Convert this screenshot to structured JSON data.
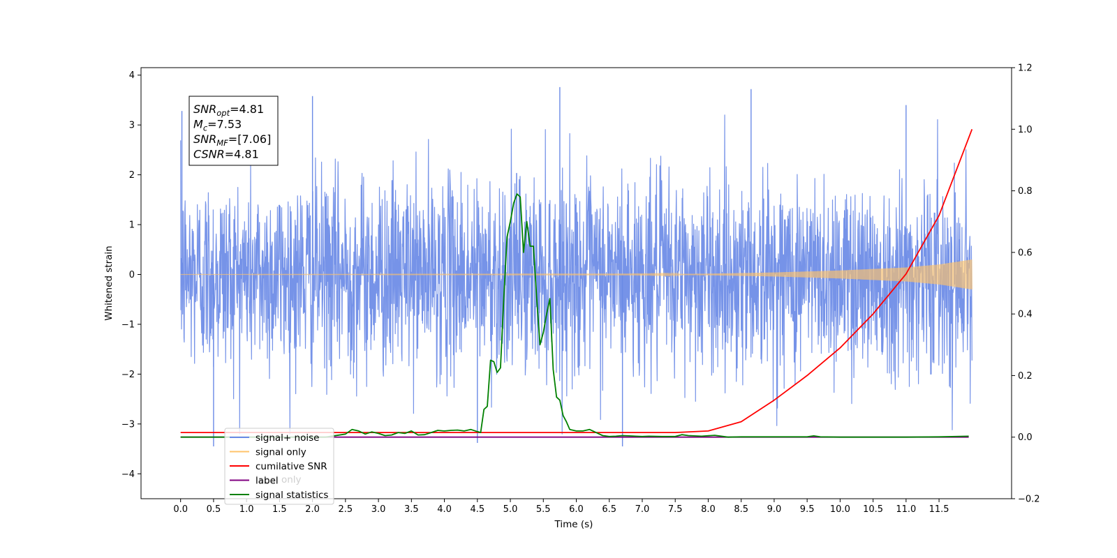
{
  "chart_data": {
    "type": "line",
    "xlabel": "Time (s)",
    "ylabel": "Whitened strain",
    "xlim": [
      -0.6,
      12.6
    ],
    "ylim": [
      -4.5,
      4.15
    ],
    "y2lim": [
      -0.2,
      1.2
    ],
    "x_ticks": [
      "0.0",
      "0.5",
      "1.0",
      "1.5",
      "2.0",
      "2.5",
      "3.0",
      "3.5",
      "4.0",
      "4.5",
      "5.0",
      "5.5",
      "6.0",
      "6.5",
      "7.0",
      "7.5",
      "8.0",
      "8.5",
      "9.0",
      "9.5",
      "10.0",
      "10.5",
      "11.0",
      "11.5"
    ],
    "y_ticks": [
      "−4",
      "−3",
      "−2",
      "−1",
      "0",
      "1",
      "2",
      "3",
      "4"
    ],
    "y2_ticks": [
      "−0.2",
      "0.0",
      "0.2",
      "0.4",
      "0.6",
      "0.8",
      "1.0",
      "1.2"
    ],
    "annotation": {
      "lines": [
        {
          "main": "SNR",
          "sub": "opt",
          "rest": "=4.81"
        },
        {
          "main": "M",
          "sub": "c",
          "rest": "=7.53"
        },
        {
          "main": "SNR",
          "sub": "MF",
          "rest": "=[7.06]"
        },
        {
          "main": "CSNR",
          "sub": "",
          "rest": "=4.81"
        }
      ]
    },
    "legend": {
      "placement": "lower-left",
      "entries": [
        {
          "label": "signal+ noise",
          "color": "#6a8ae6"
        },
        {
          "label": "signal only",
          "color": "#ffc36a"
        },
        {
          "label": "cumilative SNR",
          "color": "#ff0000"
        },
        {
          "label": "label",
          "color": "#800080"
        },
        {
          "label": "signal statistics",
          "color": "#008000"
        }
      ],
      "obscured_label": "label only"
    },
    "series": [
      {
        "name": "signal+ noise",
        "axis": "left",
        "color": "#6a8ae6",
        "t_start": 0.0,
        "t_end": 12.0,
        "noise_std": 0.97,
        "peak_values": [
          {
            "t": 0.02,
            "y": 3.28
          },
          {
            "t": 2.0,
            "y": 3.58
          },
          {
            "t": 5.75,
            "y": 3.76
          },
          {
            "t": 8.65,
            "y": 3.72
          },
          {
            "t": 11.0,
            "y": 3.4
          },
          {
            "t": 0.5,
            "y": -3.45
          },
          {
            "t": 4.5,
            "y": -3.38
          },
          {
            "t": 6.7,
            "y": -3.45
          }
        ]
      },
      {
        "name": "signal only",
        "axis": "left",
        "color": "#ffc36a",
        "t_start": 0.0,
        "t_end": 12.0,
        "envelope": {
          "t": [
            0,
            7,
            8,
            9,
            10,
            11,
            11.5,
            12
          ],
          "amp": [
            0,
            0.005,
            0.015,
            0.04,
            0.08,
            0.14,
            0.2,
            0.3
          ]
        }
      },
      {
        "name": "cumilative SNR",
        "axis": "right",
        "color": "#ff0000",
        "x": [
          0,
          7.5,
          8.0,
          8.5,
          9.0,
          9.5,
          10.0,
          10.5,
          11.0,
          11.5,
          12.0
        ],
        "y": [
          0.015,
          0.015,
          0.02,
          0.05,
          0.12,
          0.2,
          0.29,
          0.4,
          0.53,
          0.72,
          1.0
        ]
      },
      {
        "name": "label",
        "axis": "right",
        "color": "#800080",
        "x": [
          0,
          11.95
        ],
        "y": [
          0.0,
          0.0
        ]
      },
      {
        "name": "signal statistics",
        "axis": "right",
        "color": "#008000",
        "x": [
          0.0,
          2.2,
          2.5,
          2.6,
          2.7,
          2.8,
          2.9,
          3.0,
          3.1,
          3.2,
          3.3,
          3.4,
          3.5,
          3.6,
          3.7,
          3.8,
          3.9,
          4.0,
          4.1,
          4.2,
          4.3,
          4.4,
          4.5,
          4.55,
          4.6,
          4.65,
          4.7,
          4.75,
          4.8,
          4.85,
          4.9,
          4.95,
          5.0,
          5.05,
          5.1,
          5.15,
          5.2,
          5.25,
          5.3,
          5.35,
          5.4,
          5.45,
          5.5,
          5.55,
          5.6,
          5.65,
          5.7,
          5.75,
          5.8,
          5.85,
          5.9,
          6.0,
          6.1,
          6.2,
          6.3,
          6.4,
          6.5,
          6.6,
          6.7,
          6.8,
          6.9,
          7.0,
          7.1,
          7.3,
          7.5,
          7.6,
          7.7,
          7.9,
          8.1,
          8.3,
          8.5,
          9.0,
          9.5,
          9.6,
          9.7,
          10.0,
          10.5,
          11.0,
          11.5,
          11.95
        ],
        "y": [
          0.0,
          0.0,
          0.01,
          0.025,
          0.02,
          0.01,
          0.017,
          0.012,
          0.005,
          0.007,
          0.015,
          0.012,
          0.02,
          0.007,
          0.008,
          0.015,
          0.022,
          0.02,
          0.022,
          0.023,
          0.02,
          0.025,
          0.018,
          0.015,
          0.09,
          0.1,
          0.25,
          0.245,
          0.21,
          0.225,
          0.45,
          0.65,
          0.7,
          0.76,
          0.79,
          0.78,
          0.6,
          0.7,
          0.62,
          0.62,
          0.45,
          0.3,
          0.34,
          0.4,
          0.45,
          0.22,
          0.13,
          0.12,
          0.07,
          0.05,
          0.025,
          0.02,
          0.02,
          0.025,
          0.015,
          0.005,
          0.002,
          0.003,
          0.005,
          0.004,
          0.003,
          0.002,
          0.003,
          0.002,
          0.002,
          0.008,
          0.005,
          0.003,
          0.006,
          0.0,
          0.001,
          0.001,
          0.001,
          0.004,
          0.001,
          0.0,
          0.0,
          0.0,
          0.001,
          0.003
        ]
      }
    ]
  }
}
